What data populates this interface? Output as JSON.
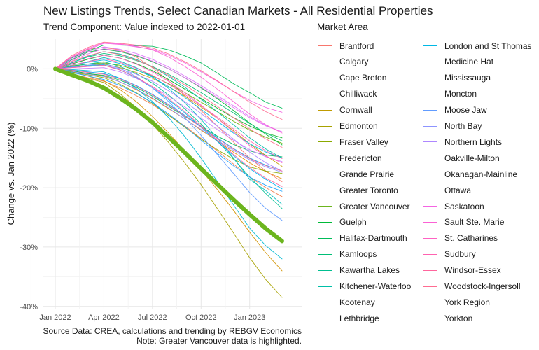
{
  "title": "New Listings Trends, Select Canadian Markets - All Residential Properties",
  "subtitle": "Trend Component: Value indexed to 2022-01-01",
  "caption": [
    "Source Data: CREA, calculations and trending by REBGV Economics",
    "Note: Greater Vancouver data is highlighted."
  ],
  "chart_data": {
    "type": "line",
    "title": "New Listings Trends, Select Canadian Markets - All Residential Properties",
    "subtitle": "Trend Component: Value indexed to 2022-01-01",
    "xlabel": "",
    "ylabel": "Change vs. Jan 2022 (%)",
    "x": [
      "2022-01",
      "2022-02",
      "2022-03",
      "2022-04",
      "2022-05",
      "2022-06",
      "2022-07",
      "2022-08",
      "2022-09",
      "2022-10",
      "2022-11",
      "2022-12",
      "2023-01",
      "2023-02",
      "2023-03"
    ],
    "x_ticks": [
      "Jan 2022",
      "Apr 2022",
      "Jul 2022",
      "Oct 2022",
      "Jan 2023"
    ],
    "y_ticks": [
      0,
      -10,
      -20,
      -30,
      -40
    ],
    "y_tick_labels": [
      "0%",
      "-10%",
      "-20%",
      "-30%",
      "-40%"
    ],
    "ylim": [
      -40.5,
      5
    ],
    "reference_line": 0,
    "legend_title": "Market Area",
    "legend_position": "right",
    "grid": true,
    "highlighted": "Greater Vancouver",
    "series": [
      {
        "name": "Brantford",
        "color": "#F8766D",
        "values": [
          0,
          2.0,
          3.3,
          3.6,
          3.2,
          2.0,
          0.2,
          -2,
          -4.5,
          -7,
          -9.6,
          -12.3,
          -15,
          -17.2,
          -19
        ]
      },
      {
        "name": "Calgary",
        "color": "#F07E4D",
        "values": [
          0,
          -0.8,
          -1.5,
          -2.1,
          -3.2,
          -4.5,
          -6,
          -7.8,
          -9.6,
          -11.7,
          -13.8,
          -16,
          -18.2,
          -20,
          -21.5
        ]
      },
      {
        "name": "Cape Breton",
        "color": "#E48800",
        "values": [
          0,
          -0.3,
          -0.8,
          -1.2,
          -2.2,
          -3.5,
          -5,
          -6.7,
          -8.4,
          -10.3,
          -12.1,
          -14,
          -15.8,
          -17.3,
          -18.5
        ]
      },
      {
        "name": "Chilliwack",
        "color": "#D39200",
        "values": [
          0,
          -0.5,
          -1.2,
          -2.0,
          -3.5,
          -5.5,
          -8,
          -10.8,
          -13.8,
          -17,
          -20.3,
          -23.8,
          -27.5,
          -31,
          -34
        ]
      },
      {
        "name": "Cornwall",
        "color": "#C09B00",
        "values": [
          0,
          0.3,
          0.6,
          0.8,
          0.2,
          -0.6,
          -1.6,
          -3,
          -4.6,
          -6.4,
          -8.3,
          -10.4,
          -12.6,
          -14.6,
          -16.4
        ]
      },
      {
        "name": "Edmonton",
        "color": "#A8A200",
        "values": [
          0,
          -0.8,
          -1.6,
          -2.3,
          -4.2,
          -6.5,
          -9.3,
          -12.4,
          -15.8,
          -19.5,
          -23.5,
          -27.6,
          -31.8,
          -35.5,
          -38.5
        ]
      },
      {
        "name": "Fraser Valley",
        "color": "#8BA900",
        "values": [
          0,
          -0.5,
          -1.0,
          -1.5,
          -2.6,
          -4,
          -5.8,
          -7.8,
          -9.8,
          -11.8,
          -13.6,
          -15.2,
          -16.5,
          -17.2,
          -17.6
        ]
      },
      {
        "name": "Fredericton",
        "color": "#65AF00",
        "values": [
          0,
          0.5,
          0.8,
          1.0,
          0.6,
          -0.2,
          -1.2,
          -2.5,
          -4,
          -5.6,
          -7.2,
          -8.8,
          -10.3,
          -11.5,
          -12.5
        ]
      },
      {
        "name": "Grande Prairie",
        "color": "#00B31F",
        "values": [
          0,
          0.8,
          1.6,
          2.3,
          1.8,
          0.9,
          -0.3,
          -1.8,
          -3.4,
          -5,
          -6.6,
          -8.2,
          -9.6,
          -10.8,
          -11.6
        ]
      },
      {
        "name": "Greater Toronto",
        "color": "#00B55C",
        "values": [
          0,
          -0.3,
          -0.8,
          -1.1,
          -1.9,
          -3.1,
          -4.6,
          -6.3,
          -8,
          -9.7,
          -11.3,
          -12.7,
          -13.8,
          -14.5,
          -14.8
        ]
      },
      {
        "name": "Greater Vancouver",
        "color": "#6CB51E",
        "values": [
          0,
          -1.0,
          -2.0,
          -3.2,
          -4.9,
          -6.8,
          -9,
          -11.5,
          -14.1,
          -16.8,
          -19.4,
          -22,
          -24.5,
          -26.9,
          -29
        ]
      },
      {
        "name": "Guelph",
        "color": "#00BA38",
        "values": [
          0,
          1.5,
          2.8,
          3.3,
          2.9,
          2.2,
          1.2,
          0,
          -1.5,
          -3.2,
          -5,
          -7,
          -9.1,
          -11,
          -12.8
        ]
      },
      {
        "name": "Halifax-Dartmouth",
        "color": "#00BC59",
        "values": [
          0,
          1.8,
          3.0,
          4.0,
          4.0,
          3.9,
          3.8,
          3.2,
          2.2,
          1,
          -0.7,
          -2.5,
          -4,
          -5.6,
          -6.6
        ]
      },
      {
        "name": "Kamloops",
        "color": "#00BE76",
        "values": [
          0,
          1.0,
          2.0,
          2.6,
          2.2,
          1.4,
          0.4,
          -0.9,
          -2.4,
          -4,
          -5.7,
          -7.4,
          -9.2,
          -10.8,
          -12.1
        ]
      },
      {
        "name": "Kawartha Lakes",
        "color": "#00BF90",
        "values": [
          0,
          0.4,
          0.8,
          1.2,
          0.4,
          -0.8,
          -2.4,
          -4.4,
          -6.7,
          -9.3,
          -12.1,
          -15.1,
          -18.2,
          -21,
          -23.5
        ]
      },
      {
        "name": "Kitchener-Waterloo",
        "color": "#00BFA8",
        "values": [
          0,
          1.0,
          2.1,
          2.9,
          2.5,
          1.6,
          0.3,
          -1.3,
          -3.1,
          -5.1,
          -7.2,
          -9.4,
          -11.6,
          -13.5,
          -15
        ]
      },
      {
        "name": "Kootenay",
        "color": "#00BEBF",
        "values": [
          0,
          0.6,
          1.2,
          1.9,
          1.3,
          0.2,
          -1.3,
          -3.3,
          -5.7,
          -8.5,
          -11.6,
          -15,
          -18.6,
          -20.5,
          -22.8
        ]
      },
      {
        "name": "Lethbridge",
        "color": "#00BBD3",
        "values": [
          0,
          -0.1,
          -0.3,
          -0.5,
          -1.6,
          -3.3,
          -5.5,
          -8.2,
          -11.4,
          -15,
          -18.9,
          -22.9,
          -26.8,
          -29.8,
          -32
        ]
      },
      {
        "name": "London and St Thomas",
        "color": "#00B8E5",
        "values": [
          0,
          0.6,
          1.1,
          1.5,
          0.9,
          -0.1,
          -1.4,
          -3,
          -4.8,
          -6.8,
          -8.8,
          -10.8,
          -12.6,
          -14,
          -15
        ]
      },
      {
        "name": "Medicine Hat",
        "color": "#00B3F2",
        "values": [
          0,
          0.3,
          0.5,
          0.7,
          -0.2,
          -1.5,
          -3.2,
          -5.2,
          -7.4,
          -9.8,
          -12.2,
          -14.6,
          -16.8,
          -18.6,
          -20.2
        ]
      },
      {
        "name": "Mississauga",
        "color": "#00ACFC",
        "values": [
          0,
          -0.2,
          -0.5,
          -0.8,
          -1.6,
          -2.8,
          -4.3,
          -6,
          -7.8,
          -9.7,
          -11.6,
          -13.4,
          -15,
          -16.2,
          -17.2
        ]
      },
      {
        "name": "Moncton",
        "color": "#1FA3FF",
        "values": [
          0,
          -0.6,
          -1.2,
          -1.8,
          -2.8,
          -4.1,
          -5.7,
          -7.6,
          -9.7,
          -12,
          -14.2,
          -16.3,
          -18.2,
          -19.6,
          -20.6
        ]
      },
      {
        "name": "Moose Jaw",
        "color": "#619CFF",
        "values": [
          0,
          0.3,
          0.6,
          0.9,
          0.1,
          -1.3,
          -3.2,
          -5.5,
          -8.2,
          -11.2,
          -14.4,
          -17.6,
          -20.8,
          -23.5,
          -25.5
        ]
      },
      {
        "name": "North Bay",
        "color": "#8D94FF",
        "values": [
          0,
          -0.4,
          -0.9,
          -1.3,
          -2.2,
          -3.4,
          -4.9,
          -6.6,
          -8.4,
          -10.2,
          -12,
          -13.7,
          -15.3,
          -16.5,
          -17.4
        ]
      },
      {
        "name": "Northern Lights",
        "color": "#AE87FF",
        "values": [
          0,
          0.2,
          0.4,
          0.6,
          0.0,
          -0.9,
          -2.1,
          -3.7,
          -5.5,
          -7.5,
          -9.6,
          -11.8,
          -14,
          -15.8,
          -17.2
        ]
      },
      {
        "name": "Oakville-Milton",
        "color": "#C77CFF",
        "values": [
          0,
          0.0,
          0.1,
          0.2,
          -0.5,
          -1.6,
          -3,
          -4.6,
          -6.4,
          -8.3,
          -10.2,
          -12,
          -13.6,
          -14.8,
          -15.6
        ]
      },
      {
        "name": "Okanagan-Mainline",
        "color": "#DB72FB",
        "values": [
          0,
          1.6,
          2.9,
          3.7,
          3.3,
          2.6,
          1.6,
          0.3,
          -1.2,
          -2.8,
          -4.5,
          -6.2,
          -8,
          -9.5,
          -10.6
        ]
      },
      {
        "name": "Ottawa",
        "color": "#E96AF0",
        "values": [
          0,
          1.3,
          2.5,
          3.4,
          3.0,
          2.3,
          1.3,
          0,
          -1.5,
          -3.1,
          -4.8,
          -6.5,
          -8.2,
          -9.6,
          -10.6
        ]
      },
      {
        "name": "Saskatoon",
        "color": "#F464E2",
        "values": [
          0,
          1.9,
          3.2,
          4.3,
          4.1,
          3.7,
          3.3,
          2.3,
          1,
          -0.5,
          -2.1,
          -3.8,
          -5.3,
          -6.5,
          -7.3
        ]
      },
      {
        "name": "Sault Ste. Marie",
        "color": "#FB61D4",
        "values": [
          0,
          2.0,
          3.4,
          4.4,
          4.2,
          3.8,
          3.2,
          2,
          0.4,
          -1.4,
          -3.4,
          -5.5,
          -7.6,
          -9.4,
          -10.8
        ]
      },
      {
        "name": "St. Catharines",
        "color": "#FF61C3",
        "values": [
          0,
          0.9,
          1.7,
          2.3,
          1.8,
          0.8,
          -0.5,
          -2.1,
          -4,
          -6.1,
          -8.3,
          -10.6,
          -12.9,
          -14.7,
          -15.8
        ]
      },
      {
        "name": "Sudbury",
        "color": "#FF62B0",
        "values": [
          0,
          0.6,
          1.2,
          1.7,
          1.1,
          0.1,
          -1.1,
          -2.6,
          -4.3,
          -6.2,
          -8.1,
          -10.1,
          -12.1,
          -13.8,
          -15.1
        ]
      },
      {
        "name": "Windsor-Essex",
        "color": "#FF659D",
        "values": [
          0,
          0.2,
          0.4,
          0.6,
          -0.2,
          -1.4,
          -3,
          -5,
          -7.2,
          -9.6,
          -12,
          -14.4,
          -16.6,
          -18.4,
          -19.8
        ]
      },
      {
        "name": "Woodstock-Ingersoll",
        "color": "#FF6C91",
        "values": [
          0,
          2.2,
          3.6,
          4.5,
          4.3,
          4.0,
          3.5,
          2.5,
          1.2,
          -0.3,
          -2,
          -3.8,
          -5.6,
          -7.2,
          -8.5
        ]
      },
      {
        "name": "York Region",
        "color": "#FF6A98",
        "values": [
          0,
          -0.2,
          -0.6,
          -0.9,
          -1.7,
          -2.9,
          -4.4,
          -6.1,
          -7.9,
          -9.8,
          -11.7,
          -13.5,
          -15.1,
          -16.3,
          -17.2
        ]
      },
      {
        "name": "Yorkton",
        "color": "#FC6F8A",
        "values": [
          0,
          1.2,
          2.2,
          2.9,
          2.4,
          1.5,
          0.3,
          -1.1,
          -2.7,
          -4.5,
          -6.3,
          -8.2,
          -10.1,
          -11.8,
          -13.2
        ]
      }
    ]
  }
}
